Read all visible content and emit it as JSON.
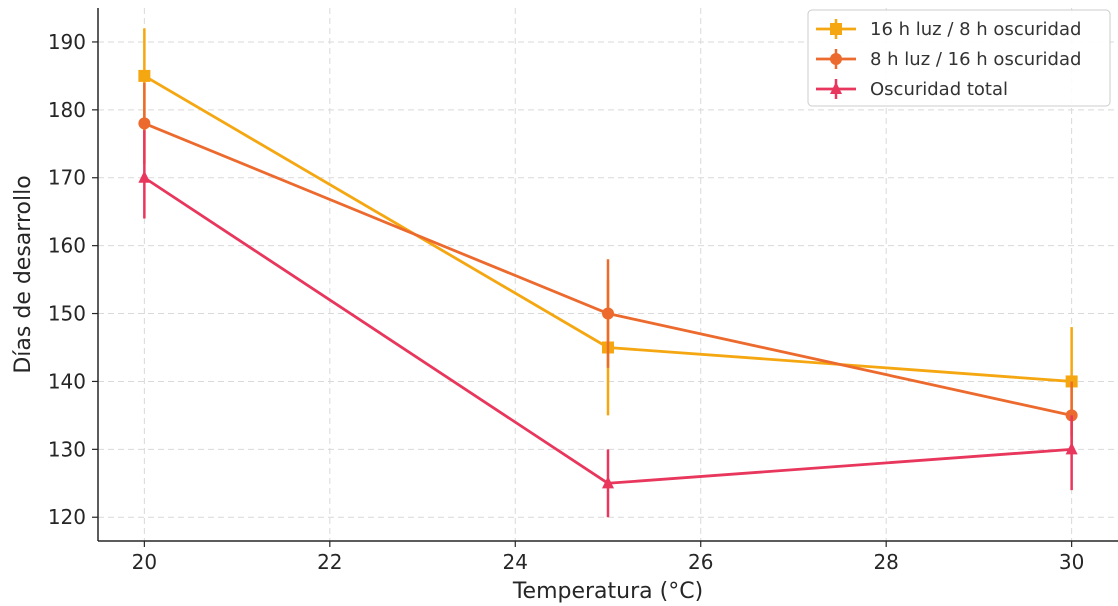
{
  "chart_data": {
    "type": "line",
    "title": "",
    "xlabel": "Temperatura (°C)",
    "ylabel": "Días de desarrollo",
    "x": [
      20,
      25,
      30
    ],
    "xlim": [
      19.5,
      30.5
    ],
    "ylim": [
      116.5,
      195
    ],
    "xticks": [
      20,
      22,
      24,
      26,
      28,
      30
    ],
    "yticks": [
      120,
      130,
      140,
      150,
      160,
      170,
      180,
      190
    ],
    "grid": true,
    "legend_position": "top-right",
    "series": [
      {
        "name": "16 h luz / 8 h oscuridad",
        "marker": "square",
        "color": "#F5A711",
        "values": [
          185,
          145,
          140
        ],
        "error_low": [
          177,
          135,
          132
        ],
        "error_high": [
          192,
          155,
          148
        ]
      },
      {
        "name": "8 h luz / 16 h oscuridad",
        "marker": "circle",
        "color": "#EC6A2D",
        "values": [
          178,
          150,
          135
        ],
        "error_low": [
          172,
          142,
          130
        ],
        "error_high": [
          184,
          158,
          140
        ]
      },
      {
        "name": "Oscuridad total",
        "marker": "triangle",
        "color": "#E8365C",
        "values": [
          170,
          125,
          130
        ],
        "error_low": [
          164,
          120,
          124
        ],
        "error_high": [
          177,
          130,
          135
        ]
      }
    ]
  }
}
